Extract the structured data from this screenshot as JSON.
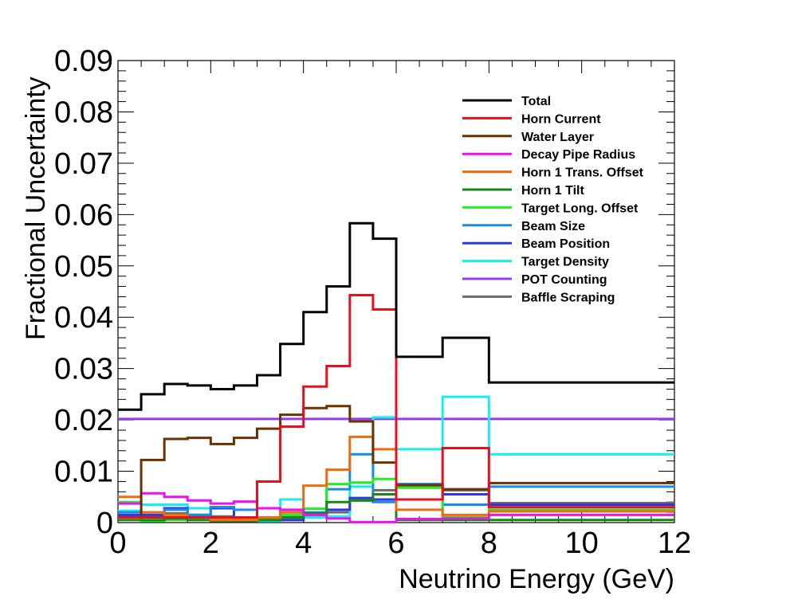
{
  "chart_data": {
    "type": "line",
    "step": true,
    "xlabel": "Neutrino Energy (GeV)",
    "ylabel": "Fractional Uncertainty",
    "xlim": [
      0,
      12
    ],
    "ylim": [
      0,
      0.09
    ],
    "xticks": [
      "0",
      "2",
      "4",
      "6",
      "8",
      "10",
      "12"
    ],
    "yticks": [
      "0",
      "0.01",
      "0.02",
      "0.03",
      "0.04",
      "0.05",
      "0.06",
      "0.07",
      "0.08",
      "0.09"
    ],
    "legend_position": "top-right",
    "bin_edges": [
      0,
      0.5,
      1,
      1.5,
      2,
      2.5,
      3,
      3.5,
      4,
      4.5,
      5,
      5.5,
      6,
      7,
      8,
      12
    ],
    "series": [
      {
        "name": "Total",
        "color": "#000000",
        "values": [
          0.022,
          0.025,
          0.027,
          0.0267,
          0.026,
          0.0267,
          0.0287,
          0.0348,
          0.041,
          0.046,
          0.0583,
          0.0553,
          0.0323,
          0.036,
          0.0273
        ]
      },
      {
        "name": "Horn Current",
        "color": "#e8101c",
        "values": [
          0.001,
          0.001,
          0.001,
          0.001,
          0.001,
          0.001,
          0.008,
          0.0187,
          0.0265,
          0.0305,
          0.0443,
          0.0415,
          0.0045,
          0.0145,
          0.003
        ]
      },
      {
        "name": "Water Layer",
        "color": "#6b3200",
        "values": [
          0.001,
          0.0122,
          0.0163,
          0.0165,
          0.0153,
          0.0165,
          0.0183,
          0.021,
          0.0223,
          0.0227,
          0.0197,
          0.0117,
          0.0073,
          0.0065,
          0.0077
        ]
      },
      {
        "name": "Decay Pipe Radius",
        "color": "#ee10ee",
        "values": [
          0.0037,
          0.0057,
          0.005,
          0.0043,
          0.0037,
          0.0041,
          0.0028,
          0.0025,
          0.0015,
          0.0008,
          0.0001,
          0.0001,
          0.0007,
          0.0008,
          0.0015
        ]
      },
      {
        "name": "Horn 1 Trans. Offset",
        "color": "#f06a10",
        "values": [
          0.005,
          0.002,
          0.0015,
          0.001,
          0.0005,
          0.0005,
          0.001,
          0.002,
          0.0072,
          0.0103,
          0.0167,
          0.0143,
          0.0025,
          0.0015,
          0.0022
        ]
      },
      {
        "name": "Horn 1 Tilt",
        "color": "#138a13",
        "values": [
          0.0005,
          0.0005,
          0.0008,
          0.0005,
          0.0003,
          0.0003,
          0.0005,
          0.001,
          0.0018,
          0.004,
          0.0043,
          0.0055,
          0.0005,
          0.0005,
          0.0005
        ]
      },
      {
        "name": "Target Long. Offset",
        "color": "#22ee22",
        "values": [
          0.004,
          0.0003,
          0.0005,
          0.0005,
          0.0005,
          0.0005,
          0.0008,
          0.0015,
          0.0027,
          0.0075,
          0.0078,
          0.0085,
          0.0068,
          0.001,
          0.0025
        ]
      },
      {
        "name": "Beam Size",
        "color": "#1a8ae8",
        "values": [
          0.002,
          0.002,
          0.0025,
          0.0015,
          0.003,
          0.0025,
          0.001,
          0.0015,
          0.002,
          0.0065,
          0.0133,
          0.004,
          0.0075,
          0.0035,
          0.007
        ]
      },
      {
        "name": "Beam Position",
        "color": "#2a3ae0",
        "values": [
          0.0015,
          0.0015,
          0.0028,
          0.0015,
          0.0028,
          0.0005,
          0.0005,
          0.0005,
          0.0015,
          0.0025,
          0.0048,
          0.0045,
          0.0075,
          0.0055,
          0.0035
        ]
      },
      {
        "name": "Target Density",
        "color": "#18eeee",
        "values": [
          0.0023,
          0.0035,
          0.0035,
          0.0028,
          0.003,
          0.001,
          0.0003,
          0.0045,
          0.001,
          0.0012,
          0.007,
          0.0205,
          0.0143,
          0.0245,
          0.0133
        ]
      },
      {
        "name": "POT Counting",
        "color": "#9a3aee",
        "values": [
          0.0202,
          0.0202,
          0.0202,
          0.0202,
          0.0202,
          0.0202,
          0.0202,
          0.0202,
          0.0202,
          0.0202,
          0.0202,
          0.0202,
          0.0202,
          0.0202,
          0.0202
        ]
      },
      {
        "name": "Baffle Scraping",
        "color": "#6a6a6a",
        "values": [
          0.0012,
          0.0012,
          0.0018,
          0.0015,
          0.0012,
          0.001,
          0.0008,
          0.0005,
          0.001,
          0.002,
          0.0043,
          0.0063,
          0.0068,
          0.0063,
          0.0038
        ]
      }
    ]
  }
}
